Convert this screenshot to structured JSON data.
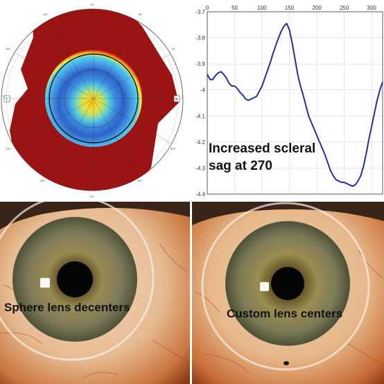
{
  "topography_map": {
    "polar_labels": [
      "90",
      "120",
      "60",
      "150",
      "30",
      "180",
      "0",
      "210",
      "330",
      "240",
      "300",
      "270"
    ],
    "marker_labels": [
      "T",
      "N"
    ]
  },
  "sag_plot": {
    "annotation_line1": "Increased scleral",
    "annotation_line2": "sag at 270",
    "line_color": "#1f2fa0"
  },
  "eye_photos": {
    "left_caption": "Sphere lens decenters",
    "right_caption": "Custom lens centers"
  },
  "chart_data": {
    "type": "line",
    "title": "",
    "xlabel": "",
    "ylabel": "",
    "xlim": [
      0,
      320
    ],
    "ylim": [
      -4.4,
      -3.7
    ],
    "xticks": [
      0,
      50,
      100,
      150,
      200,
      250,
      300
    ],
    "yticks": [
      -3.7,
      -3.8,
      -3.9,
      -4,
      -4.1,
      -4.2,
      -4.3,
      -4.4
    ],
    "grid": true,
    "series": [
      {
        "x": [
          0,
          5,
          10,
          15,
          20,
          25,
          30,
          35,
          40,
          45,
          50,
          55,
          60,
          65,
          70,
          75,
          80,
          85,
          90,
          95,
          100,
          105,
          110,
          115,
          120,
          125,
          130,
          135,
          140,
          145,
          150,
          155,
          160,
          165,
          170,
          175,
          180,
          185,
          190,
          195,
          200,
          205,
          210,
          215,
          220,
          225,
          230,
          235,
          240,
          245,
          250,
          255,
          260,
          265,
          270,
          275,
          280,
          285,
          290,
          295,
          300,
          305,
          310,
          315,
          320
        ],
        "values": [
          -3.94,
          -3.96,
          -3.96,
          -3.945,
          -3.935,
          -3.93,
          -3.94,
          -3.955,
          -3.975,
          -3.985,
          -3.985,
          -3.995,
          -4.01,
          -4.02,
          -4.035,
          -4.04,
          -4.035,
          -4.03,
          -4.025,
          -4.005,
          -3.985,
          -3.955,
          -3.925,
          -3.895,
          -3.86,
          -3.83,
          -3.8,
          -3.775,
          -3.755,
          -3.745,
          -3.77,
          -3.82,
          -3.88,
          -3.94,
          -3.985,
          -4.02,
          -4.06,
          -4.1,
          -4.125,
          -4.15,
          -4.175,
          -4.2,
          -4.225,
          -4.25,
          -4.28,
          -4.31,
          -4.33,
          -4.345,
          -4.35,
          -4.355,
          -4.355,
          -4.36,
          -4.365,
          -4.37,
          -4.365,
          -4.35,
          -4.33,
          -4.295,
          -4.245,
          -4.19,
          -4.14,
          -4.09,
          -4.04,
          -4.0,
          -3.97
        ]
      }
    ]
  }
}
